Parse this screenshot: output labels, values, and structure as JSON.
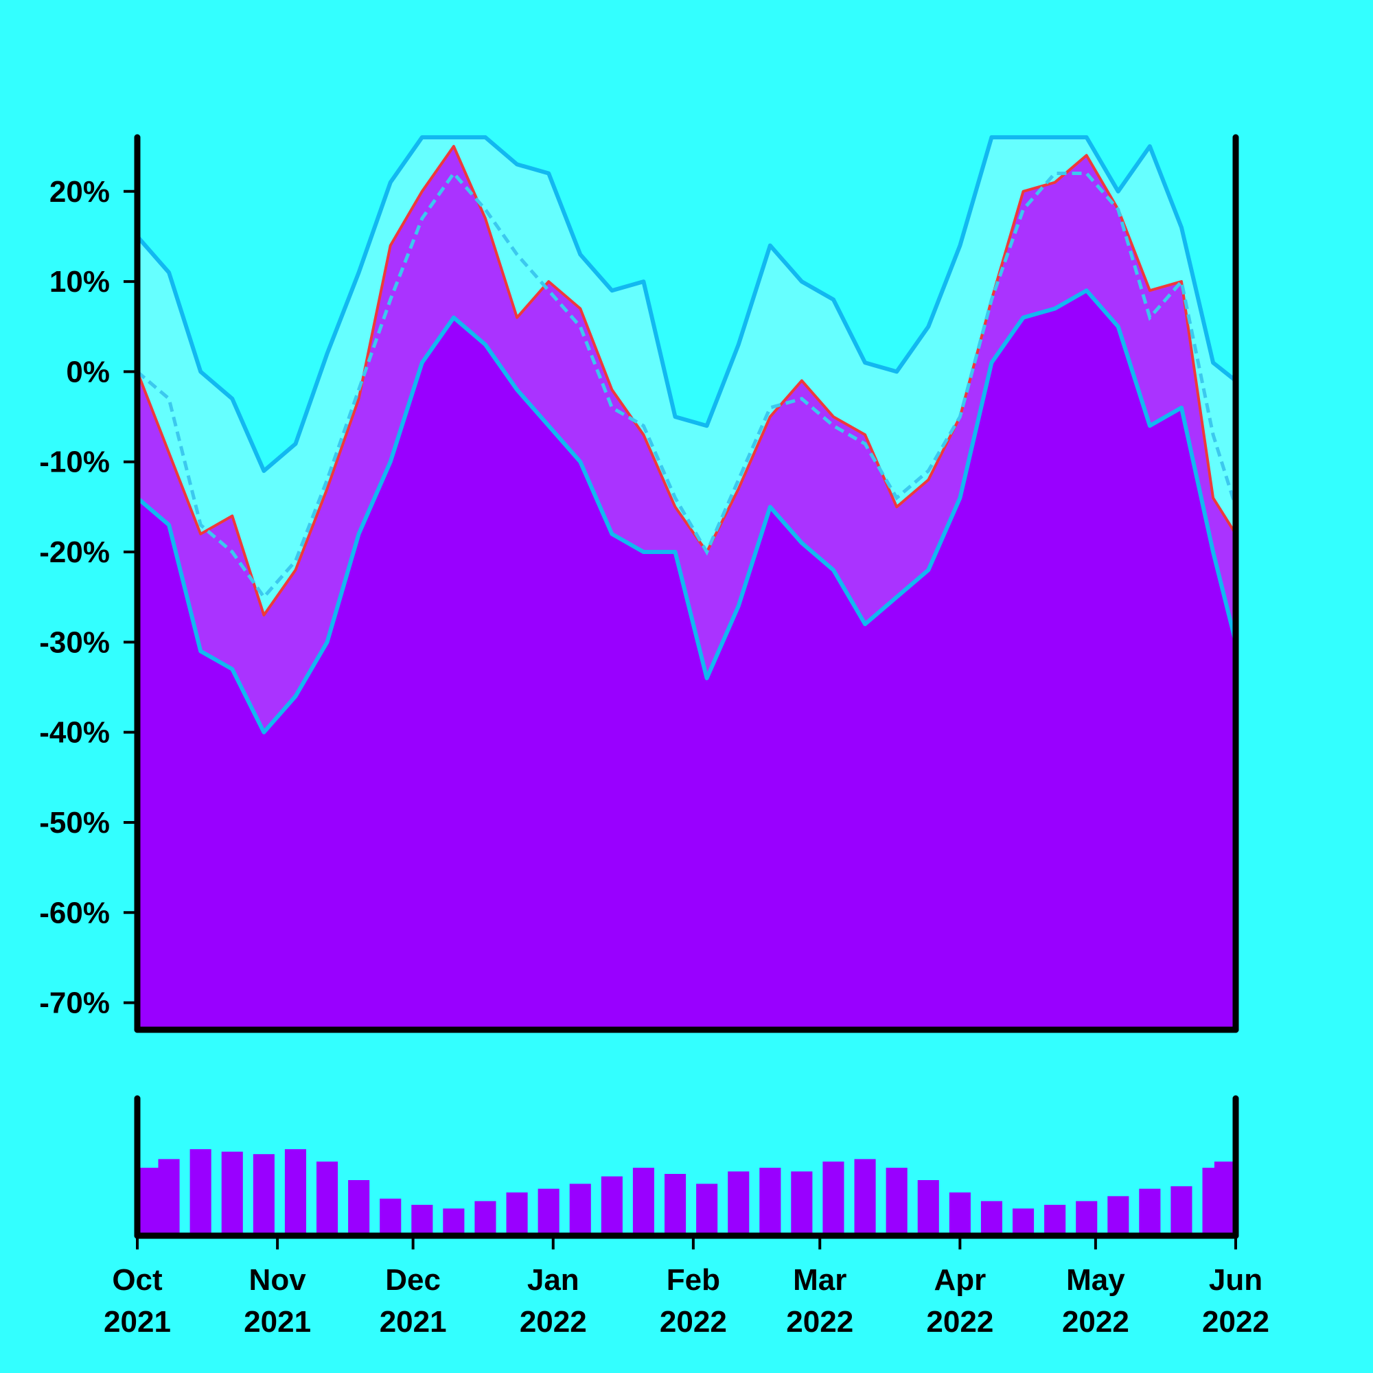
{
  "chart_data": [
    {
      "type": "area",
      "title": "",
      "xlabel": "",
      "ylabel": "",
      "ylim": [
        -73,
        26
      ],
      "y_ticks": [
        20,
        10,
        0,
        -10,
        -20,
        -30,
        -40,
        -50,
        -60,
        -70
      ],
      "y_tick_labels": [
        "20%",
        "10%",
        "0%",
        "-10%",
        "-20%",
        "-30%",
        "-40%",
        "-50%",
        "-60%",
        "-70%"
      ],
      "xlim": [
        "2021-10-01",
        "2022-06-01"
      ],
      "x_ticks": [
        "2021-10-01",
        "2021-11-01",
        "2021-12-01",
        "2022-01-01",
        "2022-02-01",
        "2022-03-01",
        "2022-04-01",
        "2022-05-01",
        "2022-06-01"
      ],
      "x_tick_labels": [
        [
          "Oct",
          "2021"
        ],
        [
          "Nov",
          "2021"
        ],
        [
          "Dec",
          "2021"
        ],
        [
          "Jan",
          "2022"
        ],
        [
          "Feb",
          "2022"
        ],
        [
          "Mar",
          "2022"
        ],
        [
          "Apr",
          "2022"
        ],
        [
          "May",
          "2022"
        ],
        [
          "Jun",
          "2022"
        ]
      ],
      "grid": false,
      "legend": "none",
      "colors": {
        "background": "#33ffff",
        "band_fill": "#66ffff",
        "band_line": "#12b8f0",
        "fill": "#9900ff",
        "light_fill": "#aa33ff",
        "price_line": "#ee3a3a",
        "ma_line": "#3cc8ee",
        "axis": "#000000"
      },
      "series": [
        {
          "role": "price",
          "x": [
            "2021-10-01",
            "2021-10-08",
            "2021-10-15",
            "2021-10-22",
            "2021-10-29",
            "2021-11-05",
            "2021-11-12",
            "2021-11-19",
            "2021-11-26",
            "2021-12-03",
            "2021-12-10",
            "2021-12-17",
            "2021-12-24",
            "2021-12-31",
            "2022-01-07",
            "2022-01-14",
            "2022-01-21",
            "2022-01-28",
            "2022-02-04",
            "2022-02-11",
            "2022-02-18",
            "2022-02-25",
            "2022-03-04",
            "2022-03-11",
            "2022-03-18",
            "2022-03-25",
            "2022-04-01",
            "2022-04-08",
            "2022-04-15",
            "2022-04-22",
            "2022-04-29",
            "2022-05-06",
            "2022-05-13",
            "2022-05-20",
            "2022-05-27",
            "2022-06-01"
          ],
          "values": [
            0,
            -9,
            -18,
            -16,
            -27,
            -22,
            -13,
            -3,
            14,
            20,
            25,
            17,
            6,
            10,
            7,
            -2,
            -7,
            -15,
            -20,
            -13,
            -5,
            -1,
            -5,
            -7,
            -15,
            -12,
            -5,
            8,
            20,
            21,
            24,
            18,
            9,
            10,
            -14,
            -18
          ]
        },
        {
          "role": "moving-average",
          "x": [
            "2021-10-01",
            "2021-10-08",
            "2021-10-15",
            "2021-10-22",
            "2021-10-29",
            "2021-11-05",
            "2021-11-12",
            "2021-11-19",
            "2021-11-26",
            "2021-12-03",
            "2021-12-10",
            "2021-12-17",
            "2021-12-24",
            "2021-12-31",
            "2022-01-07",
            "2022-01-14",
            "2022-01-21",
            "2022-01-28",
            "2022-02-04",
            "2022-02-11",
            "2022-02-18",
            "2022-02-25",
            "2022-03-04",
            "2022-03-11",
            "2022-03-18",
            "2022-03-25",
            "2022-04-01",
            "2022-04-08",
            "2022-04-15",
            "2022-04-22",
            "2022-04-29",
            "2022-05-06",
            "2022-05-13",
            "2022-05-20",
            "2022-05-27",
            "2022-06-01"
          ],
          "values": [
            0,
            -3,
            -17,
            -20,
            -25,
            -21,
            -12,
            -2,
            8,
            17,
            22,
            18,
            13,
            9,
            5,
            -4,
            -6,
            -14,
            -20,
            -12,
            -4,
            -3,
            -6,
            -8,
            -14,
            -11,
            -5,
            8,
            18,
            22,
            22,
            18,
            6,
            10,
            -7,
            -15
          ]
        },
        {
          "role": "upper-band",
          "x": [
            "2021-10-01",
            "2021-10-08",
            "2021-10-15",
            "2021-10-22",
            "2021-10-29",
            "2021-11-05",
            "2021-11-12",
            "2021-11-19",
            "2021-11-26",
            "2021-12-03",
            "2021-12-10",
            "2021-12-17",
            "2021-12-24",
            "2021-12-31",
            "2022-01-07",
            "2022-01-14",
            "2022-01-21",
            "2022-01-28",
            "2022-02-04",
            "2022-02-11",
            "2022-02-18",
            "2022-02-25",
            "2022-03-04",
            "2022-03-11",
            "2022-03-18",
            "2022-03-25",
            "2022-04-01",
            "2022-04-08",
            "2022-04-15",
            "2022-04-22",
            "2022-04-29",
            "2022-05-06",
            "2022-05-13",
            "2022-05-20",
            "2022-05-27",
            "2022-06-01"
          ],
          "values": [
            15,
            11,
            0,
            -3,
            -11,
            -8,
            2,
            11,
            21,
            26,
            26,
            26,
            23,
            22,
            13,
            9,
            10,
            -5,
            -6,
            3,
            14,
            10,
            8,
            1,
            0,
            5,
            14,
            26,
            26,
            26,
            26,
            20,
            25,
            16,
            1,
            -1
          ]
        },
        {
          "role": "lower-band",
          "x": [
            "2021-10-01",
            "2021-10-08",
            "2021-10-15",
            "2021-10-22",
            "2021-10-29",
            "2021-11-05",
            "2021-11-12",
            "2021-11-19",
            "2021-11-26",
            "2021-12-03",
            "2021-12-10",
            "2021-12-17",
            "2021-12-24",
            "2021-12-31",
            "2022-01-07",
            "2022-01-14",
            "2022-01-21",
            "2022-01-28",
            "2022-02-04",
            "2022-02-11",
            "2022-02-18",
            "2022-02-25",
            "2022-03-04",
            "2022-03-11",
            "2022-03-18",
            "2022-03-25",
            "2022-04-01",
            "2022-04-08",
            "2022-04-15",
            "2022-04-22",
            "2022-04-29",
            "2022-05-06",
            "2022-05-13",
            "2022-05-20",
            "2022-05-27",
            "2022-06-01"
          ],
          "values": [
            -14,
            -17,
            -31,
            -33,
            -40,
            -36,
            -30,
            -18,
            -10,
            1,
            6,
            3,
            -2,
            -6,
            -10,
            -18,
            -20,
            -20,
            -34,
            -26,
            -15,
            -19,
            -22,
            -28,
            -25,
            -22,
            -14,
            1,
            6,
            7,
            9,
            5,
            -6,
            -4,
            -20,
            -30
          ]
        }
      ]
    },
    {
      "type": "bar",
      "title": "",
      "xlim": [
        "2021-10-01",
        "2022-06-01"
      ],
      "grid": false,
      "legend": "none",
      "bar_color": "#9900ff",
      "ylim": [
        0,
        1
      ],
      "x": [
        "2021-10-01",
        "2021-10-08",
        "2021-10-15",
        "2021-10-22",
        "2021-10-29",
        "2021-11-05",
        "2021-11-12",
        "2021-11-19",
        "2021-11-26",
        "2021-12-03",
        "2021-12-10",
        "2021-12-17",
        "2021-12-24",
        "2021-12-31",
        "2022-01-07",
        "2022-01-14",
        "2022-01-21",
        "2022-01-28",
        "2022-02-04",
        "2022-02-11",
        "2022-02-18",
        "2022-02-25",
        "2022-03-04",
        "2022-03-11",
        "2022-03-18",
        "2022-03-25",
        "2022-04-01",
        "2022-04-08",
        "2022-04-15",
        "2022-04-22",
        "2022-04-29",
        "2022-05-06",
        "2022-05-13",
        "2022-05-20",
        "2022-05-27",
        "2022-06-01"
      ],
      "values": [
        0.55,
        0.62,
        0.7,
        0.68,
        0.66,
        0.7,
        0.6,
        0.45,
        0.3,
        0.25,
        0.22,
        0.28,
        0.35,
        0.38,
        0.42,
        0.48,
        0.55,
        0.5,
        0.42,
        0.52,
        0.55,
        0.52,
        0.6,
        0.62,
        0.55,
        0.45,
        0.35,
        0.28,
        0.22,
        0.25,
        0.28,
        0.32,
        0.38,
        0.4,
        0.55,
        0.6
      ]
    }
  ]
}
